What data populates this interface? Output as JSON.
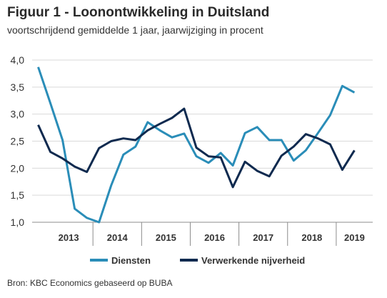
{
  "header": {
    "title": "Figuur 1 -  Loonontwikkeling in Duitsland",
    "subtitle": "voortschrijdend gemiddelde 1 jaar, jaarwijziging in procent"
  },
  "footer": {
    "source": "Bron: KBC Economics gebaseerd op BUBA"
  },
  "chart_data": {
    "type": "line",
    "title": "Figuur 1 -  Loonontwikkeling in Duitsland",
    "subtitle": "voortschrijdend gemiddelde 1 jaar, jaarwijziging in procent",
    "x": [
      "2012Q4",
      "2013Q1",
      "2013Q2",
      "2013Q3",
      "2013Q4",
      "2014Q1",
      "2014Q2",
      "2014Q3",
      "2014Q4",
      "2015Q1",
      "2015Q2",
      "2015Q3",
      "2015Q4",
      "2016Q1",
      "2016Q2",
      "2016Q3",
      "2016Q4",
      "2017Q1",
      "2017Q2",
      "2017Q3",
      "2017Q4",
      "2018Q1",
      "2018Q2",
      "2018Q3",
      "2018Q4",
      "2019Q1",
      "2019Q2",
      "2019Q3"
    ],
    "year_labels": [
      "2013",
      "2014",
      "2015",
      "2016",
      "2017",
      "2018",
      "2019"
    ],
    "ylim": [
      1.0,
      4.0
    ],
    "yticks": [
      "1,0",
      "1,5",
      "2,0",
      "2,5",
      "3,0",
      "3,5",
      "4,0"
    ],
    "grid": true,
    "legend_position": "bottom",
    "series": [
      {
        "name": "Diensten",
        "color": "#2a8db8",
        "values": [
          3.87,
          3.2,
          2.52,
          1.25,
          1.08,
          1.0,
          1.68,
          2.25,
          2.4,
          2.85,
          2.7,
          2.57,
          2.64,
          2.22,
          2.1,
          2.28,
          2.05,
          2.65,
          2.76,
          2.52,
          2.52,
          2.14,
          2.33,
          2.65,
          2.98,
          3.52,
          3.4,
          null
        ]
      },
      {
        "name": "Verwerkende nijverheid",
        "color": "#0f2a4f",
        "values": [
          2.8,
          2.3,
          2.18,
          2.03,
          1.93,
          2.37,
          2.5,
          2.55,
          2.52,
          2.7,
          2.82,
          2.93,
          3.1,
          2.38,
          2.22,
          2.2,
          1.65,
          2.12,
          1.95,
          1.85,
          2.23,
          2.4,
          2.63,
          2.55,
          2.44,
          1.97,
          2.33,
          null
        ]
      }
    ]
  }
}
